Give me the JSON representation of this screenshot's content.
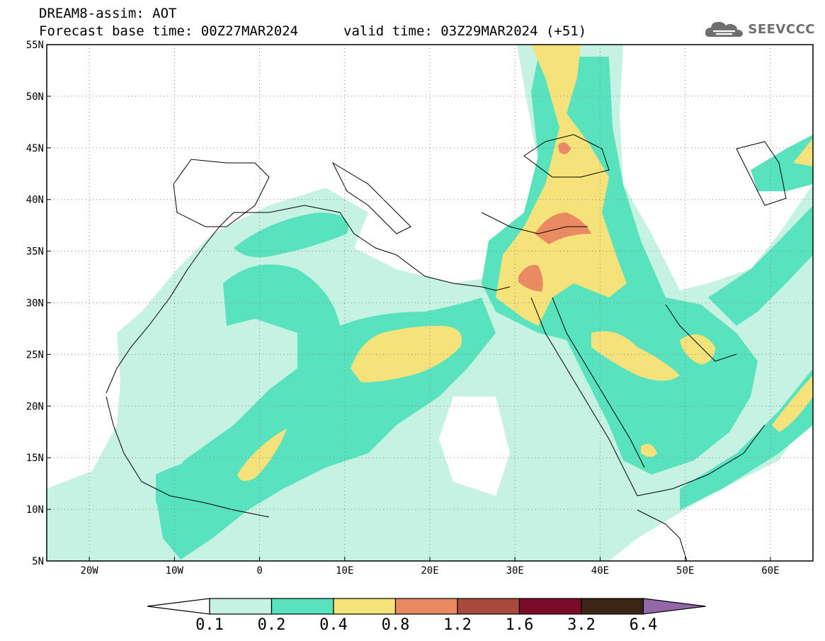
{
  "header": {
    "title": "DREAM8-assim: AOT",
    "base_time": "Forecast base time: 00Z27MAR2024",
    "valid_time": "valid time: 03Z29MAR2024 (+51)"
  },
  "logo": {
    "text": "SEEVCCC",
    "icon": "cloud-icon",
    "color": "#6f6f6f"
  },
  "map": {
    "lon_range": [
      -25,
      65
    ],
    "lat_range": [
      5,
      55
    ],
    "lon_ticks": [
      {
        "value": -20,
        "label": "20W"
      },
      {
        "value": -10,
        "label": "10W"
      },
      {
        "value": 0,
        "label": "0"
      },
      {
        "value": 10,
        "label": "10E"
      },
      {
        "value": 20,
        "label": "20E"
      },
      {
        "value": 30,
        "label": "30E"
      },
      {
        "value": 40,
        "label": "40E"
      },
      {
        "value": 50,
        "label": "50E"
      },
      {
        "value": 60,
        "label": "60E"
      }
    ],
    "lat_ticks": [
      {
        "value": 5,
        "label": "5N"
      },
      {
        "value": 10,
        "label": "10N"
      },
      {
        "value": 15,
        "label": "15N"
      },
      {
        "value": 20,
        "label": "20N"
      },
      {
        "value": 25,
        "label": "25N"
      },
      {
        "value": 30,
        "label": "30N"
      },
      {
        "value": 35,
        "label": "35N"
      },
      {
        "value": 40,
        "label": "40N"
      },
      {
        "value": 45,
        "label": "45N"
      },
      {
        "value": 50,
        "label": "50N"
      },
      {
        "value": 55,
        "label": "55N"
      }
    ]
  },
  "colorbar": {
    "labels": [
      "0.1",
      "0.2",
      "0.4",
      "0.8",
      "1.2",
      "1.6",
      "3.2",
      "6.4"
    ],
    "colors": [
      "#c6f2e4",
      "#58e2bd",
      "#f5e27a",
      "#e98a62",
      "#a94a3e",
      "#7a0c2a",
      "#3a2515"
    ],
    "under_color": "#ffffff",
    "over_color": "#9468a8"
  }
}
